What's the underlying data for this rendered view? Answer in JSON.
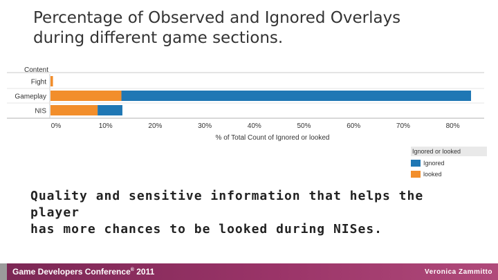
{
  "slide": {
    "title": "Percentage of Observed and Ignored Overlays\nduring different game sections.",
    "body": "Quality and sensitive information that helps the player\nhas more chances to be looked during NISes."
  },
  "footer": {
    "conference": "Game Developers Conference",
    "trademark": "®",
    "year": " 2011",
    "author": "Veronica Zammitto"
  },
  "chart_data": {
    "type": "bar",
    "orientation": "horizontal",
    "stacked": true,
    "row_header": "Content",
    "categories": [
      "Fight",
      "Gameplay",
      "NIS"
    ],
    "series": [
      {
        "name": "looked",
        "color": "#f28e2b",
        "values": [
          0.5,
          14.3,
          9.5
        ]
      },
      {
        "name": "Ignored",
        "color": "#1f77b4",
        "values": [
          0.0,
          70.5,
          5.0
        ]
      }
    ],
    "xlabel": "% of Total Count of Ignored or looked",
    "xlim": [
      0,
      85
    ],
    "xticks": [
      0,
      10,
      20,
      30,
      40,
      50,
      60,
      70,
      80
    ],
    "xtick_labels": [
      "0%",
      "10%",
      "20%",
      "30%",
      "40%",
      "50%",
      "60%",
      "70%",
      "80%"
    ],
    "legend_title": "Ignored or looked",
    "legend_items": [
      "Ignored",
      "looked"
    ],
    "legend_position": "right"
  }
}
